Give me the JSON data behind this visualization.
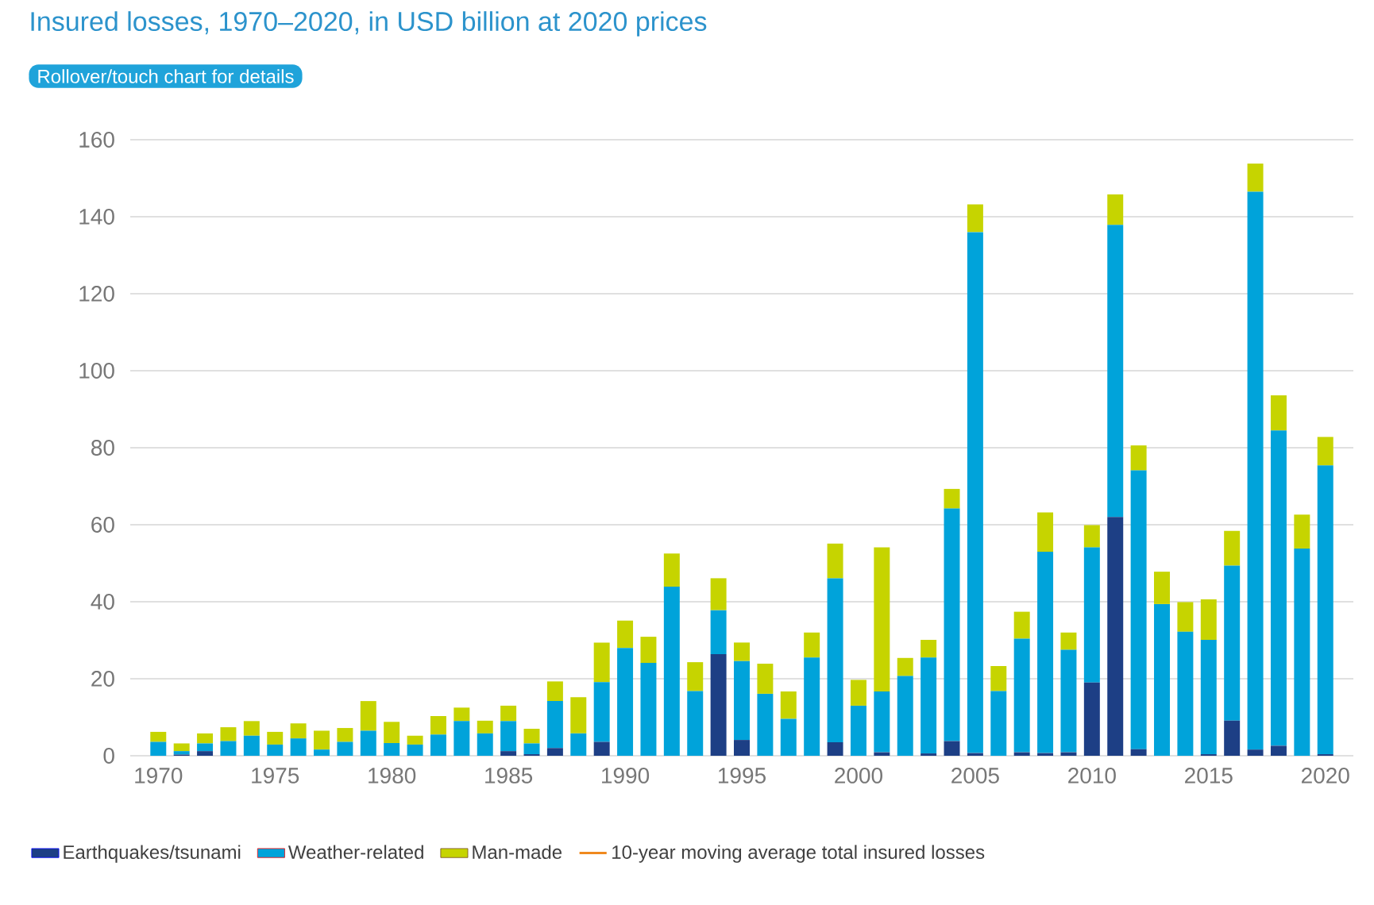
{
  "chart_data": {
    "type": "bar",
    "stacked": true,
    "title": "Insured losses, 1970–2020, in USD billion at 2020 prices",
    "subtitle": "Rollover/touch chart for details",
    "x": [
      1970,
      1971,
      1972,
      1973,
      1974,
      1975,
      1976,
      1977,
      1978,
      1979,
      1980,
      1981,
      1982,
      1983,
      1984,
      1985,
      1986,
      1987,
      1988,
      1989,
      1990,
      1991,
      1992,
      1993,
      1994,
      1995,
      1996,
      1997,
      1998,
      1999,
      2000,
      2001,
      2002,
      2003,
      2004,
      2005,
      2006,
      2007,
      2008,
      2009,
      2010,
      2011,
      2012,
      2013,
      2014,
      2015,
      2016,
      2017,
      2018,
      2019,
      2020
    ],
    "series": [
      {
        "name": "Earthquakes/tsunami",
        "color": "#1d3f85",
        "values": [
          0,
          0.3,
          1.2,
          0,
          0,
          0,
          0,
          0,
          0,
          0,
          0,
          0,
          0,
          0,
          0,
          1.2,
          0.4,
          2.0,
          0,
          3.6,
          0,
          0,
          0,
          0,
          26.4,
          4.1,
          0,
          0,
          0,
          3.5,
          0,
          0.9,
          0,
          0.6,
          3.8,
          0.7,
          0,
          0.9,
          0.7,
          0.9,
          19.0,
          62.0,
          1.7,
          0,
          0,
          0.4,
          9.1,
          1.6,
          2.6,
          0,
          0.4
        ]
      },
      {
        "name": "Weather-related",
        "color": "#00a3da",
        "values": [
          3.6,
          0.9,
          2.0,
          3.8,
          5.2,
          2.9,
          4.5,
          1.6,
          3.6,
          6.5,
          3.3,
          2.9,
          5.5,
          9.0,
          5.8,
          7.8,
          2.8,
          12.2,
          5.8,
          15.5,
          28.0,
          24.1,
          43.9,
          16.8,
          11.4,
          20.5,
          16.1,
          9.6,
          25.5,
          42.6,
          13.0,
          15.8,
          20.7,
          24.9,
          60.4,
          135.3,
          16.8,
          29.5,
          52.3,
          26.6,
          35.1,
          75.9,
          72.4,
          39.4,
          32.2,
          29.7,
          40.3,
          144.9,
          81.9,
          53.8,
          75.0
        ]
      },
      {
        "name": "Man-made",
        "color": "#c6d400",
        "values": [
          2.6,
          2.0,
          2.6,
          3.6,
          3.8,
          3.3,
          3.9,
          4.9,
          3.6,
          7.7,
          5.5,
          2.3,
          4.8,
          3.5,
          3.3,
          4.0,
          3.8,
          5.1,
          9.4,
          10.3,
          7.1,
          6.8,
          8.6,
          7.5,
          8.3,
          4.8,
          7.8,
          7.1,
          6.5,
          9.0,
          6.7,
          37.4,
          4.7,
          4.6,
          5.1,
          7.2,
          6.5,
          7.0,
          10.2,
          4.5,
          5.8,
          7.9,
          6.5,
          8.4,
          7.7,
          10.5,
          9.0,
          7.3,
          9.1,
          8.8,
          7.4
        ]
      },
      {
        "name": "10-year moving average total insured losses",
        "type": "line",
        "color": "#f0891e",
        "values": [
          null,
          null,
          null,
          null,
          null,
          null,
          null,
          null,
          null,
          null,
          null,
          null,
          null,
          null,
          null,
          null,
          null,
          null,
          null,
          null,
          null,
          null,
          null,
          null,
          null,
          null,
          null,
          null,
          null,
          null,
          null,
          null,
          null,
          null,
          null,
          null,
          null,
          null,
          null,
          null,
          null,
          null,
          null,
          null,
          null,
          null,
          null,
          null,
          null,
          null,
          null
        ]
      }
    ],
    "xlim": [
      1968.8,
      2021.2
    ],
    "xticks": [
      1970,
      1975,
      1980,
      1985,
      1990,
      1995,
      2000,
      2005,
      2010,
      2015,
      2020
    ],
    "ylim": [
      0,
      160
    ],
    "yticks": [
      0,
      20,
      40,
      60,
      80,
      100,
      120,
      140,
      160
    ],
    "grid": "y",
    "legend": "bottom"
  }
}
